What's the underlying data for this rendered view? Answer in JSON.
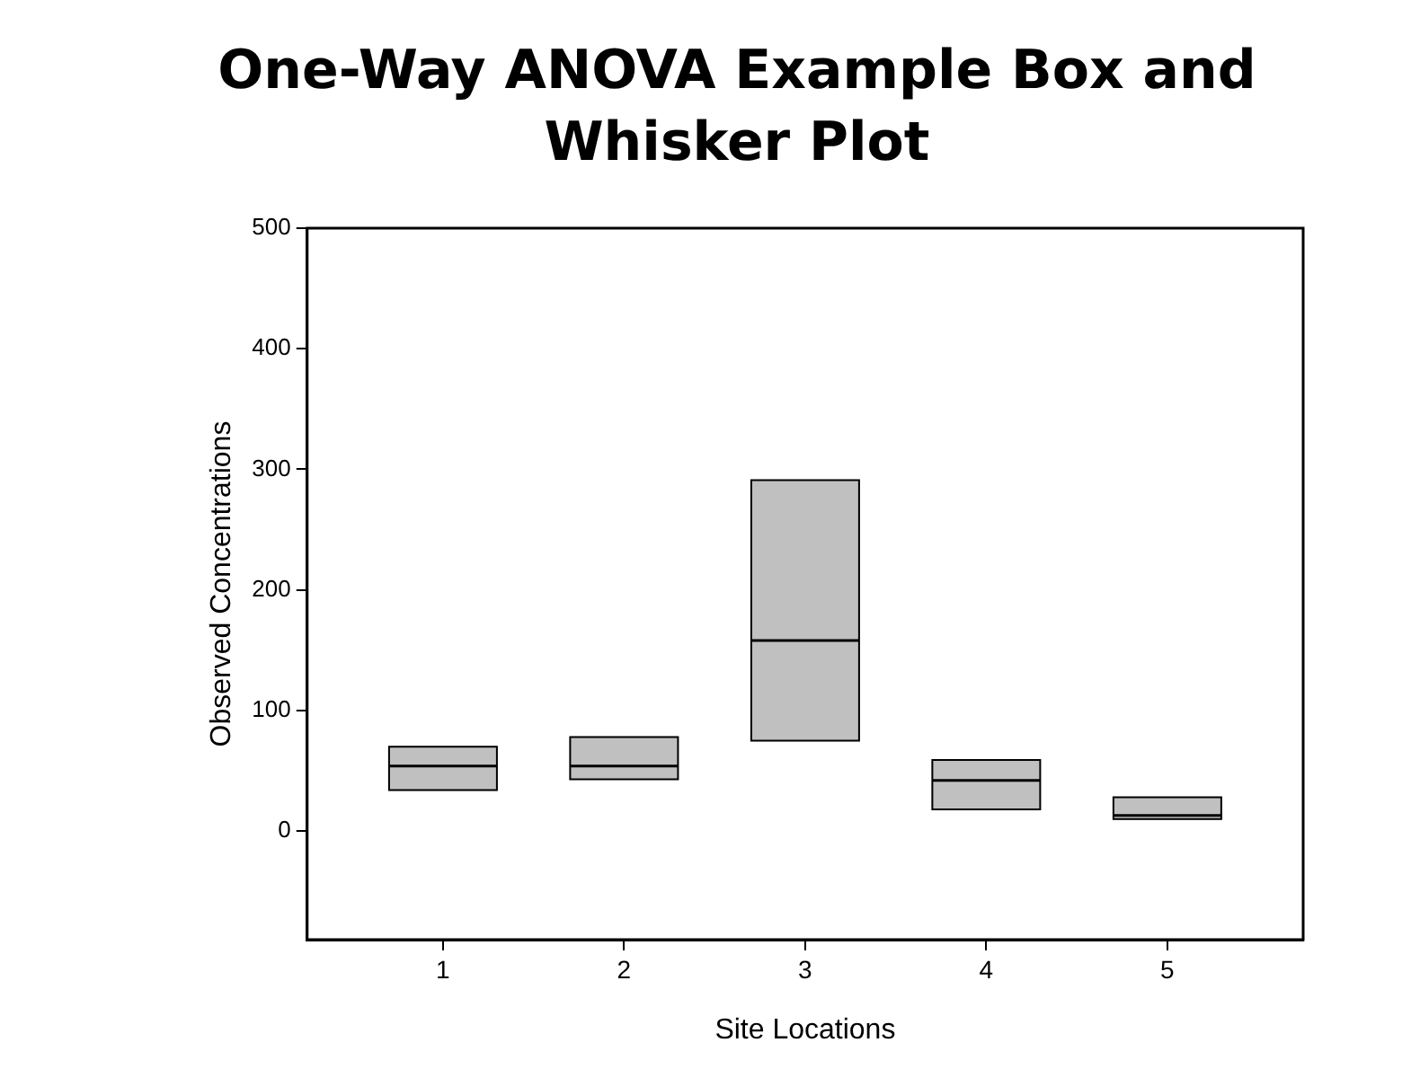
{
  "chart_data": {
    "type": "box",
    "title": "One-Way ANOVA Example Box and Whisker Plot",
    "xlabel": "Site Locations",
    "ylabel": "Observed Concentrations",
    "categories": [
      "1",
      "2",
      "3",
      "4",
      "5"
    ],
    "boxes": [
      {
        "low": 34,
        "q1": 34,
        "median": 54,
        "q3": 70,
        "high": 70
      },
      {
        "low": 43,
        "q1": 43,
        "median": 54,
        "q3": 78,
        "high": 78
      },
      {
        "low": 75,
        "q1": 75,
        "median": 158,
        "q3": 291,
        "high": 291
      },
      {
        "low": 18,
        "q1": 18,
        "median": 42,
        "q3": 59,
        "high": 59
      },
      {
        "low": 10,
        "q1": 10,
        "median": 13,
        "q3": 28,
        "high": 28
      }
    ],
    "color": "#c0c0c0",
    "ylim": [
      -90,
      500
    ],
    "yticks": [
      0,
      100,
      200,
      300,
      400,
      500
    ],
    "grid": false,
    "legend": false
  }
}
